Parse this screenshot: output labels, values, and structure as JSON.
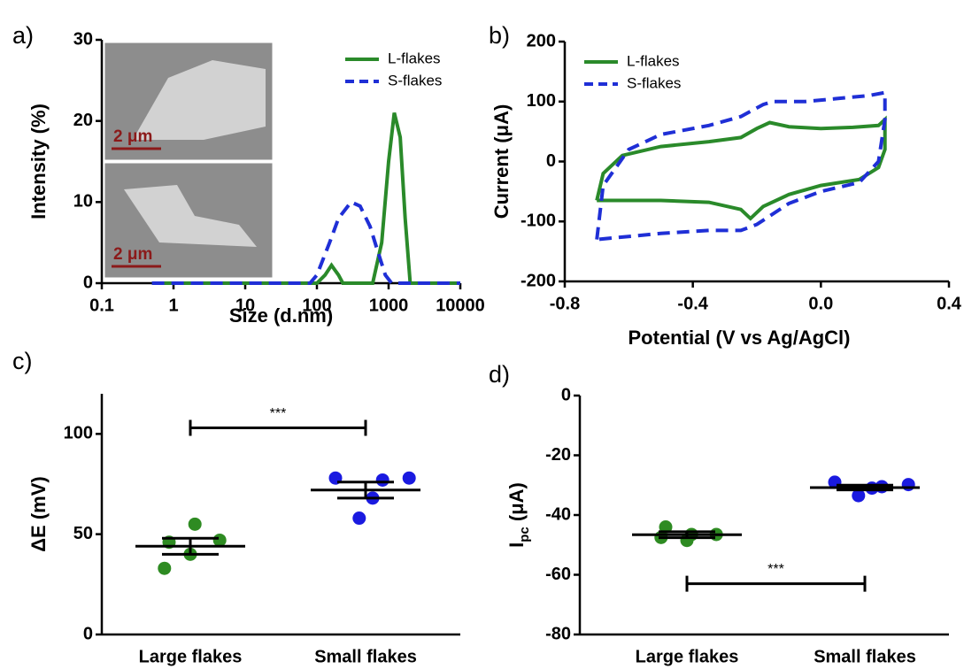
{
  "chart_data": [
    {
      "type": "line",
      "panel_label": "a)",
      "xlabel": "Size (d.nm)",
      "ylabel": "Intensity  (%)",
      "xscale": "log",
      "xlim": [
        0.1,
        10000
      ],
      "xticks": [
        0.1,
        1,
        10,
        100,
        1000,
        10000
      ],
      "ylim": [
        0,
        30
      ],
      "yticks": [
        0,
        10,
        20,
        30
      ],
      "legend": "upper right",
      "insets": [
        "2 μm",
        "2 μm"
      ],
      "series": [
        {
          "name": "L-flakes",
          "color": "#2a8a2a",
          "line_style": "solid",
          "x": [
            0.5,
            100,
            130,
            160,
            200,
            230,
            600,
            800,
            1000,
            1200,
            1450,
            1700,
            2000,
            10000
          ],
          "values": [
            0,
            0,
            1,
            2.2,
            1,
            0,
            0,
            5,
            15,
            21,
            18,
            8,
            0,
            0
          ]
        },
        {
          "name": "S-flakes",
          "color": "#1f2fd6",
          "line_style": "dashed",
          "x": [
            0.5,
            80,
            100,
            150,
            200,
            300,
            400,
            550,
            700,
            900,
            1100,
            10000
          ],
          "values": [
            0,
            0,
            1,
            5,
            8,
            10,
            9.5,
            7,
            4,
            1,
            0,
            0
          ]
        }
      ]
    },
    {
      "type": "line",
      "panel_label": "b)",
      "xlabel": "Potential  (V vs Ag/AgCl)",
      "ylabel": "Current  (μA)",
      "xscale": "linear",
      "xlim": [
        -0.8,
        0.4
      ],
      "xticks": [
        -0.8,
        -0.4,
        {
          "value": 0,
          "label": "0.0"
        },
        0.4
      ],
      "ylim": [
        -200,
        200
      ],
      "yticks": [
        -200,
        -100,
        0,
        100,
        200
      ],
      "legend": "upper left",
      "series": [
        {
          "name": "L-flakes",
          "color": "#2a8a2a",
          "line_style": "solid",
          "x": [
            -0.7,
            -0.68,
            -0.62,
            -0.5,
            -0.35,
            -0.25,
            -0.2,
            -0.16,
            -0.1,
            0.0,
            0.1,
            0.18,
            0.2,
            0.2,
            0.18,
            0.12,
            0.0,
            -0.1,
            -0.18,
            -0.22,
            -0.25,
            -0.35,
            -0.5,
            -0.7
          ],
          "values": [
            -65,
            -20,
            10,
            25,
            33,
            40,
            55,
            65,
            58,
            55,
            57,
            60,
            70,
            20,
            -10,
            -30,
            -40,
            -55,
            -75,
            -95,
            -80,
            -68,
            -65,
            -65
          ]
        },
        {
          "name": "S-flakes",
          "color": "#1f2fd6",
          "line_style": "dashed",
          "x": [
            -0.7,
            -0.68,
            -0.6,
            -0.5,
            -0.35,
            -0.25,
            -0.18,
            -0.15,
            -0.05,
            0.05,
            0.15,
            0.2,
            0.2,
            0.18,
            0.12,
            0.0,
            -0.1,
            -0.2,
            -0.25,
            -0.35,
            -0.5,
            -0.7
          ],
          "values": [
            -130,
            -40,
            20,
            45,
            60,
            75,
            95,
            100,
            100,
            105,
            110,
            115,
            70,
            0,
            -35,
            -50,
            -70,
            -105,
            -115,
            -115,
            -120,
            -130
          ]
        }
      ]
    },
    {
      "type": "dotplot",
      "panel_label": "c)",
      "ylabel": "ΔE (mV)",
      "categories": [
        "Large flakes",
        "Small flakes"
      ],
      "ylim": [
        0,
        120
      ],
      "yticks": [
        0,
        50,
        100
      ],
      "groups": [
        {
          "color": "#2e8b22",
          "values": [
            46,
            55,
            40,
            33,
            47
          ],
          "mean": 44,
          "sem": 4
        },
        {
          "color": "#1a1ae0",
          "values": [
            78,
            77,
            68,
            58,
            78
          ],
          "mean": 72,
          "sem": 4
        }
      ],
      "significance": {
        "label": "***",
        "y": 103
      }
    },
    {
      "type": "dotplot",
      "panel_label": "d)",
      "ylabel": "I",
      "ylabel_sub": "pc",
      "ylabel_unit": " (μA)",
      "categories": [
        "Large flakes",
        "Small flakes"
      ],
      "ylim": [
        -80,
        0
      ],
      "yticks": [
        -80,
        -60,
        -40,
        -20,
        0
      ],
      "groups": [
        {
          "color": "#2e8b22",
          "values": [
            -44,
            -46.5,
            -48.5,
            -47.5,
            -46.5
          ],
          "mean": -46.6,
          "sem": 1
        },
        {
          "color": "#1a1ae0",
          "values": [
            -29,
            -30.5,
            -31,
            -33.5,
            -29.8
          ],
          "mean": -30.8,
          "sem": 0.8
        }
      ],
      "significance": {
        "label": "***",
        "y": -63
      }
    }
  ]
}
